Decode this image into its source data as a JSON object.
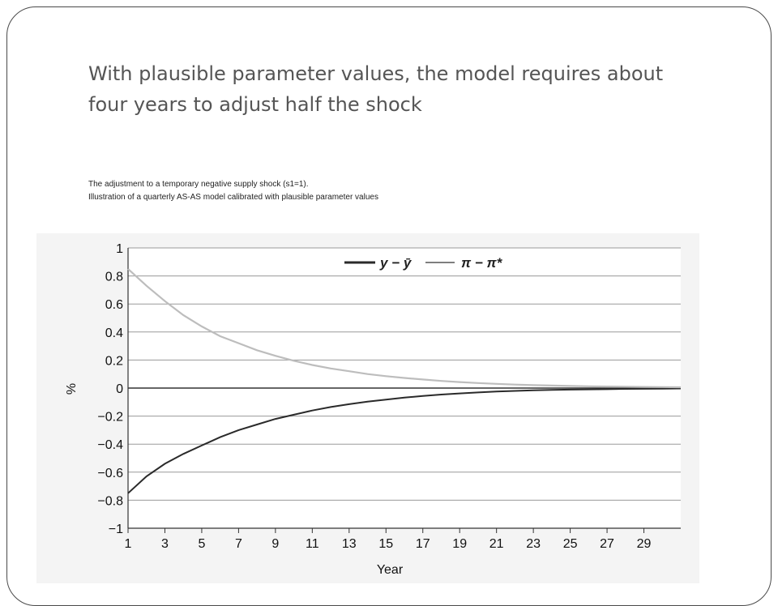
{
  "slide": {
    "title": "With plausible parameter values, the model requires about four years to adjust half the shock",
    "caption_line1": "The adjustment to a temporary negative supply shock (s1=1).",
    "caption_line2": "Illustration of a quarterly AS-AS model calibrated with plausible parameter values"
  },
  "chart_data": {
    "type": "line",
    "xlabel": "Year",
    "ylabel": "%",
    "xlim": [
      1,
      31
    ],
    "ylim": [
      -1,
      1
    ],
    "x_ticks": [
      1,
      3,
      5,
      7,
      9,
      11,
      13,
      15,
      17,
      19,
      21,
      23,
      25,
      27,
      29
    ],
    "y_ticks": [
      1,
      0.8,
      0.6,
      0.4,
      0.2,
      0,
      -0.2,
      -0.4,
      -0.6,
      -0.8,
      -1
    ],
    "y_tick_labels": [
      "1",
      "0.8",
      "0.6",
      "0.4",
      "0.2",
      "0",
      "−0.2",
      "−0.4",
      "−0.6",
      "−0.8",
      "−1"
    ],
    "grid": "horizontal",
    "legend_position": "top-center",
    "series": [
      {
        "name": "y − ȳ",
        "color": "#2a2a2a",
        "x": [
          1,
          2,
          3,
          4,
          5,
          6,
          7,
          8,
          9,
          10,
          11,
          12,
          13,
          14,
          15,
          16,
          17,
          18,
          19,
          20,
          21,
          22,
          23,
          24,
          25,
          26,
          27,
          28,
          29,
          30,
          31
        ],
        "values": [
          -0.75,
          -0.63,
          -0.54,
          -0.47,
          -0.41,
          -0.35,
          -0.3,
          -0.26,
          -0.22,
          -0.19,
          -0.16,
          -0.135,
          -0.115,
          -0.097,
          -0.082,
          -0.068,
          -0.056,
          -0.046,
          -0.038,
          -0.031,
          -0.025,
          -0.02,
          -0.016,
          -0.013,
          -0.011,
          -0.009,
          -0.008,
          -0.006,
          -0.005,
          -0.004,
          -0.003
        ]
      },
      {
        "name": "π − π*",
        "color": "#bdbdbd",
        "x": [
          1,
          2,
          3,
          4,
          5,
          6,
          7,
          8,
          9,
          10,
          11,
          12,
          13,
          14,
          15,
          16,
          17,
          18,
          19,
          20,
          21,
          22,
          23,
          24,
          25,
          26,
          27,
          28,
          29,
          30,
          31
        ],
        "values": [
          0.85,
          0.73,
          0.62,
          0.52,
          0.44,
          0.37,
          0.32,
          0.27,
          0.23,
          0.195,
          0.165,
          0.14,
          0.12,
          0.1,
          0.085,
          0.072,
          0.061,
          0.051,
          0.043,
          0.036,
          0.03,
          0.025,
          0.021,
          0.018,
          0.015,
          0.013,
          0.011,
          0.009,
          0.008,
          0.007,
          0.006
        ]
      }
    ]
  }
}
